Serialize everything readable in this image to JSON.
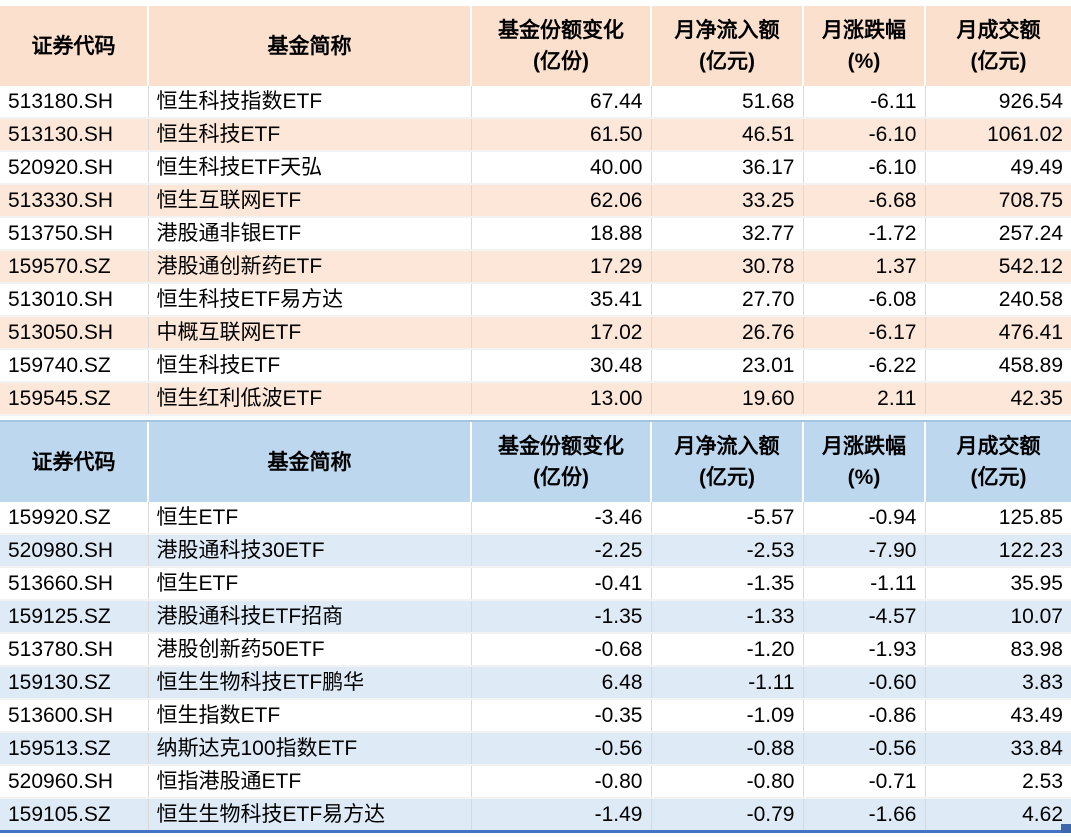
{
  "columns": [
    {
      "key": "security-code",
      "label": "证券代码",
      "unit": ""
    },
    {
      "key": "fund-name",
      "label": "基金简称",
      "unit": ""
    },
    {
      "key": "share-change",
      "label": "基金份额变化",
      "unit": "(亿份)"
    },
    {
      "key": "net-inflow",
      "label": "月净流入额",
      "unit": "(亿元)"
    },
    {
      "key": "monthly-change",
      "label": "月涨跌幅",
      "unit": "(%)"
    },
    {
      "key": "turnover",
      "label": "月成交额",
      "unit": "(亿元)"
    }
  ],
  "colors": {
    "table1_header_bg": "#FBE0CE",
    "table1_stripe_bg": "#FCE7D9",
    "table2_header_bg": "#BDD7EE",
    "table2_stripe_bg": "#DEEBF7",
    "table2_top_line": "#A3C4E3",
    "gridline": "#D9D9D9",
    "row_divider": "#F2F2F2",
    "selection_border": "#4472C4",
    "selection_handle": "#3E66A9",
    "text": "#000000"
  },
  "tables": [
    {
      "id": "inflow-table",
      "rows": [
        [
          "513180.SH",
          "恒生科技指数ETF",
          "67.44",
          "51.68",
          "-6.11",
          "926.54"
        ],
        [
          "513130.SH",
          "恒生科技ETF",
          "61.50",
          "46.51",
          "-6.10",
          "1061.02"
        ],
        [
          "520920.SH",
          "恒生科技ETF天弘",
          "40.00",
          "36.17",
          "-6.10",
          "49.49"
        ],
        [
          "513330.SH",
          "恒生互联网ETF",
          "62.06",
          "33.25",
          "-6.68",
          "708.75"
        ],
        [
          "513750.SH",
          "港股通非银ETF",
          "18.88",
          "32.77",
          "-1.72",
          "257.24"
        ],
        [
          "159570.SZ",
          "港股通创新药ETF",
          "17.29",
          "30.78",
          "1.37",
          "542.12"
        ],
        [
          "513010.SH",
          "恒生科技ETF易方达",
          "35.41",
          "27.70",
          "-6.08",
          "240.58"
        ],
        [
          "513050.SH",
          "中概互联网ETF",
          "17.02",
          "26.76",
          "-6.17",
          "476.41"
        ],
        [
          "159740.SZ",
          "恒生科技ETF",
          "30.48",
          "23.01",
          "-6.22",
          "458.89"
        ],
        [
          "159545.SZ",
          "恒生红利低波ETF",
          "13.00",
          "19.60",
          "2.11",
          "42.35"
        ]
      ]
    },
    {
      "id": "outflow-table",
      "rows": [
        [
          "159920.SZ",
          "恒生ETF",
          "-3.46",
          "-5.57",
          "-0.94",
          "125.85"
        ],
        [
          "520980.SH",
          "港股通科技30ETF",
          "-2.25",
          "-2.53",
          "-7.90",
          "122.23"
        ],
        [
          "513660.SH",
          "恒生ETF",
          "-0.41",
          "-1.35",
          "-1.11",
          "35.95"
        ],
        [
          "159125.SZ",
          "港股通科技ETF招商",
          "-1.35",
          "-1.33",
          "-4.57",
          "10.07"
        ],
        [
          "513780.SH",
          "港股创新药50ETF",
          "-0.68",
          "-1.20",
          "-1.93",
          "83.98"
        ],
        [
          "159130.SZ",
          "恒生生物科技ETF鹏华",
          "6.48",
          "-1.11",
          "-0.60",
          "3.83"
        ],
        [
          "513600.SH",
          "恒生指数ETF",
          "-0.35",
          "-1.09",
          "-0.86",
          "43.49"
        ],
        [
          "159513.SZ",
          "纳斯达克100指数ETF",
          "-0.56",
          "-0.88",
          "-0.56",
          "33.84"
        ],
        [
          "520960.SH",
          "恒指港股通ETF",
          "-0.80",
          "-0.80",
          "-0.71",
          "2.53"
        ],
        [
          "159105.SZ",
          "恒生生物科技ETF易方达",
          "-1.49",
          "-0.79",
          "-1.66",
          "4.62"
        ]
      ]
    }
  ]
}
